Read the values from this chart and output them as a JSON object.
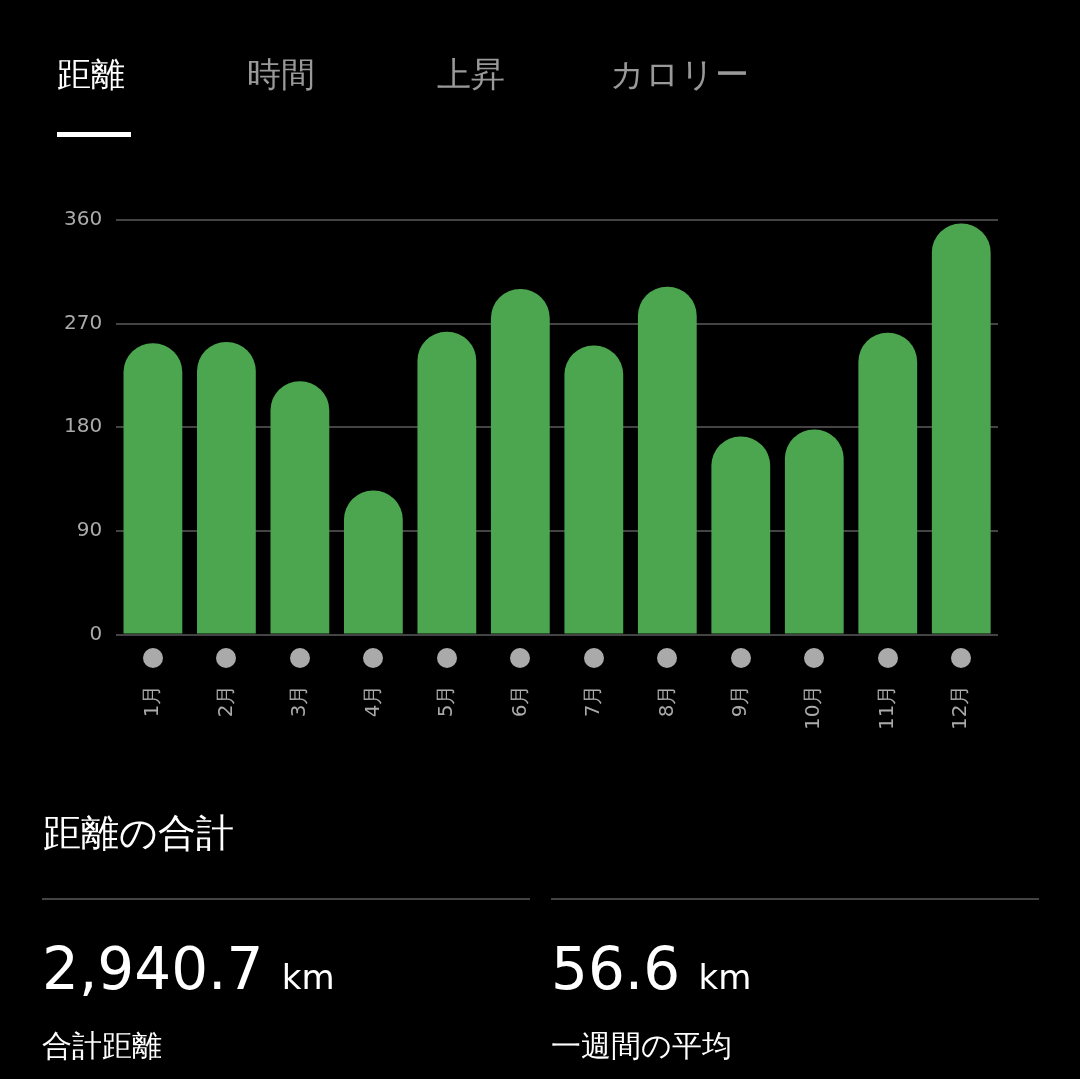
{
  "chart_data": {
    "type": "bar",
    "categories": [
      "1月",
      "2月",
      "3月",
      "4月",
      "5月",
      "6月",
      "7月",
      "8月",
      "9月",
      "10月",
      "11月",
      "12月"
    ],
    "values": [
      253,
      254,
      220,
      125,
      263,
      300,
      251,
      302,
      172,
      178,
      262,
      357
    ],
    "color": "#4ca64f",
    "ylim": [
      0,
      360
    ],
    "yticks": [
      0,
      90,
      180,
      270,
      360
    ],
    "grid": "y",
    "legend": false,
    "annotations": [
      "距離",
      "時間",
      "上昇",
      "カロリー",
      "距離の合計",
      "2,940.7 km",
      "合計距離",
      "56.6 km",
      "一週間の平均"
    ]
  }
}
